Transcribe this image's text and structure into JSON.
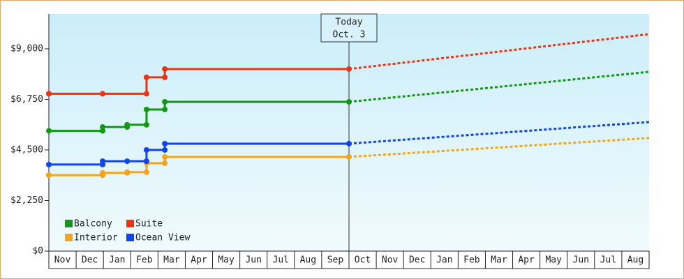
{
  "chart_data": {
    "type": "step-line",
    "x_categories": [
      "Nov",
      "Dec",
      "Jan",
      "Feb",
      "Mar",
      "Apr",
      "May",
      "Jun",
      "Jul",
      "Aug",
      "Sep",
      "Oct",
      "Nov",
      "Dec",
      "Jan",
      "Feb",
      "Mar",
      "Apr",
      "May",
      "Jun",
      "Jul",
      "Aug"
    ],
    "xlim": [
      0,
      22
    ],
    "ylim": [
      0,
      10550
    ],
    "yticks": [
      {
        "value": 0,
        "label": "$0"
      },
      {
        "value": 2250,
        "label": "$2,250"
      },
      {
        "value": 4500,
        "label": "$4,500"
      },
      {
        "value": 6750,
        "label": "$6,750"
      },
      {
        "value": 9000,
        "label": "$9,000"
      }
    ],
    "legend": "bottom-left",
    "series": [
      {
        "name": "Balcony",
        "color": "#119911",
        "x": [
          0,
          1.97,
          1.97,
          2.87,
          2.87,
          3.58,
          3.58,
          4.25,
          4.25,
          11
        ],
        "values": [
          5350,
          5350,
          5520,
          5520,
          5620,
          5620,
          6300,
          6300,
          6640,
          6640
        ],
        "forecast": {
          "x": [
            11,
            22
          ],
          "values": [
            6640,
            7975
          ]
        }
      },
      {
        "name": "Suite",
        "color": "#ee3311",
        "x": [
          0,
          1.97,
          3.58,
          3.58,
          4.25,
          4.25,
          11
        ],
        "values": [
          7000,
          7000,
          7000,
          7730,
          7730,
          8100,
          8100
        ],
        "forecast": {
          "x": [
            11,
            22
          ],
          "values": [
            8100,
            9650
          ]
        }
      },
      {
        "name": "Interior",
        "color": "#f5a511",
        "x": [
          0,
          1.97,
          1.97,
          2.87,
          2.87,
          3.58,
          3.58,
          4.25,
          4.25,
          11
        ],
        "values": [
          3380,
          3380,
          3480,
          3480,
          3510,
          3510,
          3910,
          3910,
          4190,
          4190
        ],
        "forecast": {
          "x": [
            11,
            22
          ],
          "values": [
            4190,
            5030
          ]
        }
      },
      {
        "name": "Ocean View",
        "color": "#1144ee",
        "x": [
          0,
          1.97,
          1.97,
          2.87,
          3.58,
          3.58,
          4.25,
          4.25,
          11
        ],
        "values": [
          3850,
          3850,
          4000,
          4000,
          4000,
          4500,
          4500,
          4780,
          4780
        ],
        "forecast": {
          "x": [
            11,
            22
          ],
          "values": [
            4780,
            5740
          ]
        }
      }
    ],
    "today": {
      "x": 11,
      "label": [
        "Today",
        "Oct. 3"
      ]
    }
  }
}
